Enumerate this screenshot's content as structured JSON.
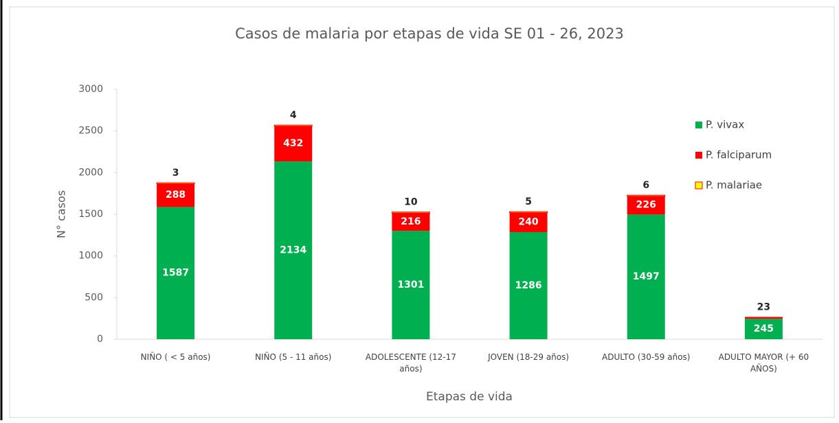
{
  "chart_data": {
    "type": "bar",
    "stacked": true,
    "title": "Casos de malaria por etapas de vida SE 01 - 26, 2023",
    "x_label": "Etapas de vida",
    "y_label": "N° casos",
    "categories": [
      "NIÑO ( < 5 años)",
      "NIÑO (5 - 11 años)",
      "ADOLESCENTE (12-17 años)",
      "JOVEN (18-29 años)",
      "ADULTO (30-59 años)",
      "ADULTO MAYOR (+ 60 AÑOS)"
    ],
    "series": [
      {
        "name": "P. vivax",
        "color": "#00b050",
        "values": [
          1587,
          2134,
          1301,
          1286,
          1497,
          245
        ]
      },
      {
        "name": "P. falciparum",
        "color": "#ff0000",
        "values": [
          288,
          432,
          216,
          240,
          226,
          23
        ]
      },
      {
        "name": "P. malariae",
        "color": "#ffff00",
        "values": [
          3,
          4,
          10,
          5,
          6,
          null
        ]
      }
    ],
    "ylim": [
      0,
      3000
    ],
    "yticks": [
      0,
      500,
      1000,
      1500,
      2000,
      2500,
      3000
    ],
    "grid": false,
    "legend": "right"
  }
}
